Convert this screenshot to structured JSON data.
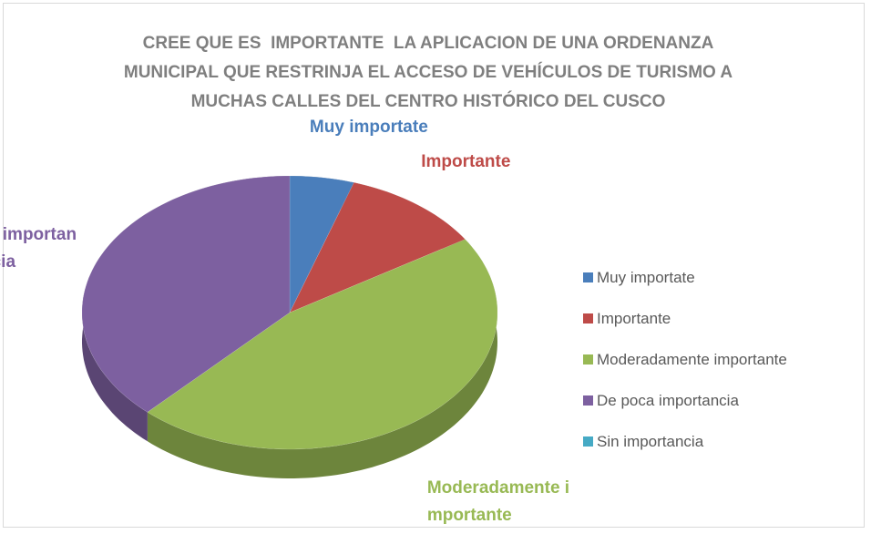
{
  "chart_data": {
    "type": "pie3d",
    "title": "CREE QUE ES  IMPORTANTE  LA APLICACION DE UNA ORDENANZA MUNICIPAL QUE RESTRINJA EL ACCESO DE VEHÍCULOS DE TURISMO A MUCHAS CALLES DEL CENTRO HISTÓRICO DEL CUSCO",
    "categories": [
      "Muy importate",
      "Importante",
      "Moderadamente importante",
      "De poca importancia",
      "Sin importancia"
    ],
    "values": [
      5,
      11,
      46,
      38,
      0
    ],
    "colors": [
      "#4a7ebb",
      "#be4b48",
      "#98b954",
      "#7d60a0",
      "#46aac5"
    ],
    "legend": "right"
  }
}
